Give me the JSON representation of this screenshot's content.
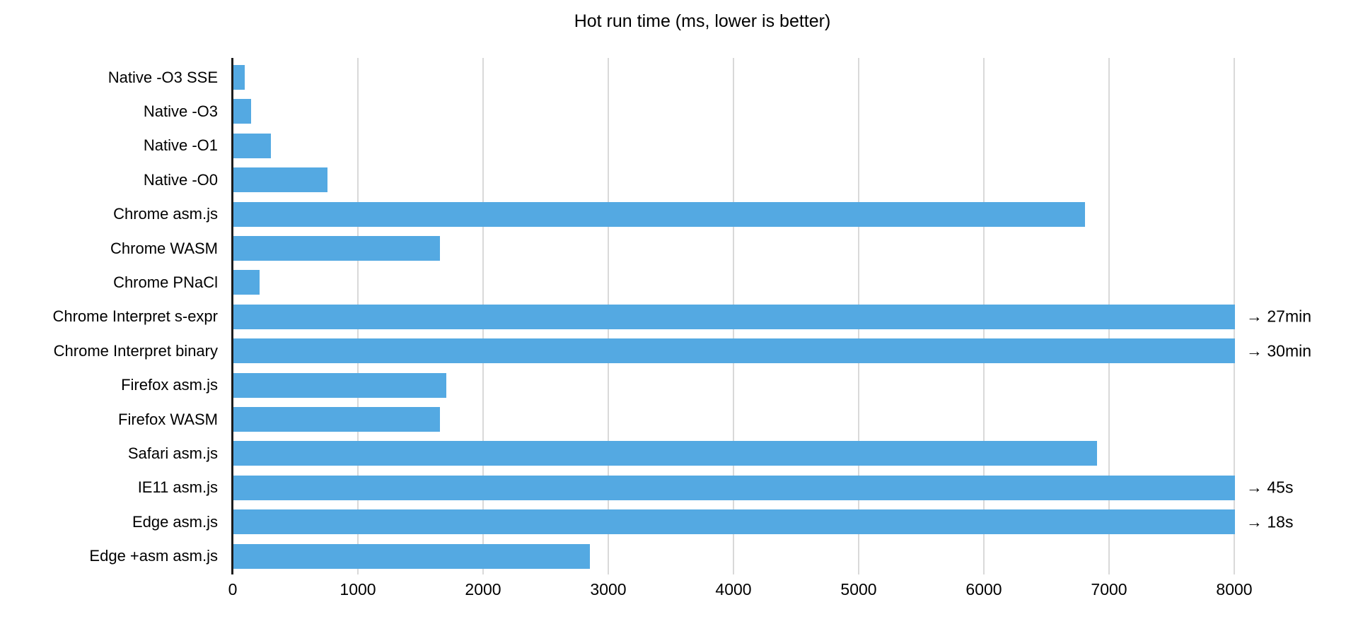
{
  "title": "Hot run time (ms, lower is better)",
  "chart_data": {
    "type": "bar",
    "orientation": "horizontal",
    "title": "Hot run time (ms, lower is better)",
    "xlabel": "",
    "ylabel": "",
    "xlim": [
      0,
      8000
    ],
    "x_ticks": [
      0,
      1000,
      2000,
      3000,
      4000,
      5000,
      6000,
      7000,
      8000
    ],
    "grid": true,
    "legend": false,
    "bar_color": "#54a9e2",
    "grid_color": "#d9d9d9",
    "axis_color": "#1c1c1c",
    "text_color": "#000000",
    "bars": [
      {
        "label": "Native -O3 SSE",
        "value": 90,
        "note": ""
      },
      {
        "label": "Native -O3",
        "value": 140,
        "note": ""
      },
      {
        "label": "Native -O1",
        "value": 300,
        "note": ""
      },
      {
        "label": "Native -O0",
        "value": 750,
        "note": ""
      },
      {
        "label": "Chrome asm.js",
        "value": 6800,
        "note": ""
      },
      {
        "label": "Chrome WASM",
        "value": 1650,
        "note": ""
      },
      {
        "label": "Chrome PNaCl",
        "value": 210,
        "note": ""
      },
      {
        "label": "Chrome Interpret s-expr",
        "value": 8000,
        "note": "→ 27min"
      },
      {
        "label": "Chrome Interpret binary",
        "value": 8000,
        "note": "→ 30min"
      },
      {
        "label": "Firefox asm.js",
        "value": 1700,
        "note": ""
      },
      {
        "label": "Firefox WASM",
        "value": 1650,
        "note": ""
      },
      {
        "label": "Safari asm.js",
        "value": 6900,
        "note": ""
      },
      {
        "label": "IE11 asm.js",
        "value": 8000,
        "note": "→ 45s"
      },
      {
        "label": "Edge asm.js",
        "value": 8000,
        "note": "→ 18s"
      },
      {
        "label": "Edge +asm asm.js",
        "value": 2850,
        "note": ""
      }
    ]
  }
}
